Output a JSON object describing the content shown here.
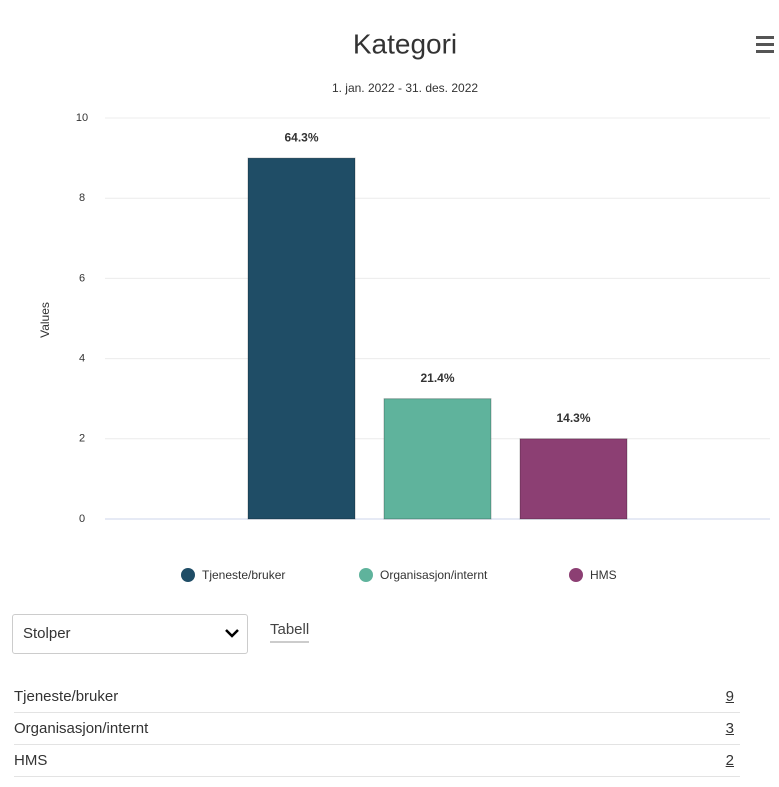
{
  "chart_data": {
    "type": "bar",
    "title": "Kategori",
    "subtitle": "1. jan. 2022 - 31. des. 2022",
    "y_label": "Values",
    "categories": [
      null
    ],
    "series": [
      {
        "name": "Tjeneste/bruker",
        "color": "#1f4d66",
        "values": [
          9
        ],
        "value_labels": [
          "64.3%"
        ]
      },
      {
        "name": "Organisasjon/internt",
        "color": "#5fb39c",
        "values": [
          3
        ],
        "value_labels": [
          "21.4%"
        ]
      },
      {
        "name": "HMS",
        "color": "#8c3f73",
        "values": [
          2
        ],
        "value_labels": [
          "14.3%"
        ]
      }
    ],
    "ylim": [
      0,
      10
    ],
    "yticks": [
      0,
      2,
      4,
      6,
      8,
      10
    ],
    "grid": true,
    "legend": "bottom"
  },
  "controls": {
    "select": "Stolper",
    "link": "Tabell"
  },
  "table": {
    "rows": [
      [
        "Tjeneste/bruker",
        "9"
      ],
      [
        "Organisasjon/internt",
        "3"
      ],
      [
        "HMS",
        "2"
      ]
    ]
  }
}
